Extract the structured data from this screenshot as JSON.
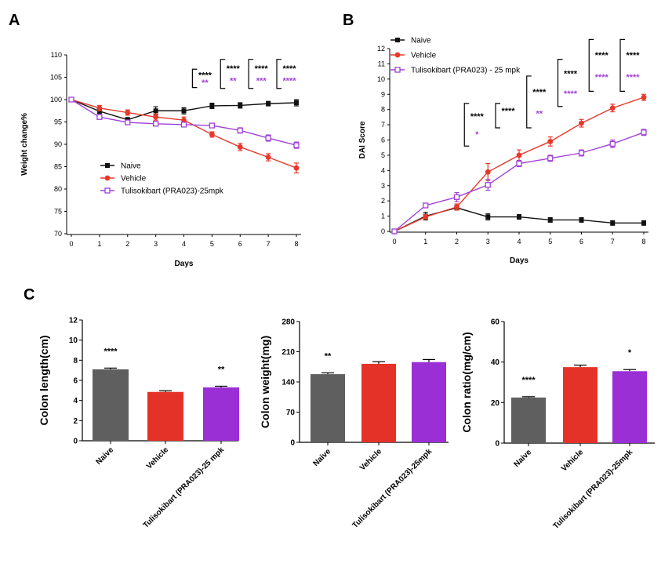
{
  "panels": {
    "a": "A",
    "b": "B",
    "c": "C"
  },
  "colors": {
    "naive": "#111111",
    "vehicle": "#e8382a",
    "tulisokibart": "#a040d8",
    "bar_naive": "#5f5f5f",
    "bar_vehicle": "#e53228",
    "bar_tulisokibart": "#9b2fd6"
  },
  "chart_data": [
    {
      "id": "A",
      "type": "line",
      "xlabel": "Days",
      "ylabel": "Weight change%",
      "ylim": [
        70,
        110
      ],
      "yticks": [
        70,
        75,
        80,
        85,
        90,
        95,
        100,
        105,
        110
      ],
      "x": [
        0,
        1,
        2,
        3,
        4,
        5,
        6,
        7,
        8
      ],
      "legend_position": "bottom-left",
      "series": [
        {
          "name": "Naive",
          "key": "naive",
          "marker": "square",
          "values": [
            100,
            97.4,
            95.5,
            97.5,
            97.5,
            98.6,
            98.7,
            99.1,
            99.3
          ],
          "errors": [
            0.2,
            0.5,
            0.5,
            0.9,
            0.7,
            0.6,
            0.6,
            0.5,
            0.7
          ]
        },
        {
          "name": "Vehicle",
          "key": "vehicle",
          "marker": "circle",
          "values": [
            100,
            98.1,
            97.1,
            96.1,
            95.4,
            92.2,
            89.4,
            87.1,
            84.7
          ],
          "errors": [
            0.2,
            0.6,
            0.6,
            0.7,
            0.7,
            0.6,
            0.8,
            0.8,
            1.1
          ]
        },
        {
          "name": "Tulisokibart (PRA023)-25mpk",
          "key": "tulisokibart",
          "marker": "open-square",
          "values": [
            100,
            96.1,
            94.9,
            94.6,
            94.4,
            94.2,
            93.1,
            91.4,
            89.8
          ],
          "errors": [
            0.2,
            0.4,
            0.4,
            0.4,
            0.4,
            0.4,
            0.6,
            0.7,
            0.7
          ]
        }
      ],
      "annotations": [
        {
          "x": 5,
          "top": "****",
          "bottom": "**",
          "bracket": "open",
          "y_top": 106.8,
          "y_bot": 102.7
        },
        {
          "x": 6,
          "top": "****",
          "bottom": "**",
          "bracket": "wide",
          "y_top": 109.0,
          "y_bot": 102.5
        },
        {
          "x": 7,
          "top": "****",
          "bottom": "***",
          "bracket": "wide",
          "y_top": 109.0,
          "y_bot": 102.5
        },
        {
          "x": 8,
          "top": "****",
          "bottom": "****",
          "bracket": "wide",
          "y_top": 109.0,
          "y_bot": 102.5
        }
      ]
    },
    {
      "id": "B",
      "type": "line",
      "xlabel": "Days",
      "ylabel": "DAI Score",
      "ylim": [
        0,
        12
      ],
      "yticks": [
        0,
        1,
        2,
        3,
        4,
        5,
        6,
        7,
        8,
        9,
        10,
        11,
        12
      ],
      "x": [
        0,
        1,
        2,
        3,
        4,
        5,
        6,
        7,
        8
      ],
      "legend_position": "top-left",
      "series": [
        {
          "name": "Naive",
          "key": "naive",
          "marker": "square",
          "values": [
            0,
            1.0,
            1.55,
            0.95,
            0.95,
            0.75,
            0.75,
            0.55,
            0.55
          ],
          "errors": [
            0,
            0.25,
            0.15,
            0.2,
            0.15,
            0.15,
            0.15,
            0.15,
            0.15
          ]
        },
        {
          "name": "Vehicle",
          "key": "vehicle",
          "marker": "circle",
          "values": [
            0,
            0.95,
            1.6,
            3.9,
            5.0,
            5.9,
            7.1,
            8.1,
            8.8
          ],
          "errors": [
            0,
            0.15,
            0.2,
            0.55,
            0.35,
            0.3,
            0.25,
            0.25,
            0.2
          ]
        },
        {
          "name": "Tulisokibart (PRA023) - 25 mpk",
          "key": "tulisokibart",
          "marker": "open-square",
          "values": [
            0,
            1.7,
            2.25,
            3.05,
            4.45,
            4.8,
            5.15,
            5.75,
            6.5
          ],
          "errors": [
            0,
            0.15,
            0.3,
            0.35,
            0.2,
            0.2,
            0.2,
            0.25,
            0.2
          ]
        }
      ],
      "annotations": [
        {
          "x": 3,
          "top": "****",
          "bottom": "*",
          "y_top": 8.4,
          "y_bot": 5.6
        },
        {
          "x": 4,
          "top": "****",
          "bottom": "",
          "y_top": 8.4,
          "y_bot": 6.8
        },
        {
          "x": 5,
          "top": "****",
          "bottom": "**",
          "y_top": 10.2,
          "y_bot": 6.8
        },
        {
          "x": 6,
          "top": "****",
          "bottom": "****",
          "y_top": 11.3,
          "y_bot": 8.2
        },
        {
          "x": 7,
          "top": "****",
          "bottom": "****",
          "y_top": 12.6,
          "y_bot": 9.2
        },
        {
          "x": 8,
          "top": "****",
          "bottom": "****",
          "y_top": 12.6,
          "y_bot": 9.2
        }
      ]
    },
    {
      "id": "C1",
      "type": "bar",
      "ylabel": "Colon length(cm)",
      "ylim": [
        0,
        12
      ],
      "yticks": [
        0,
        2,
        4,
        6,
        8,
        10,
        12
      ],
      "categories": [
        "Naive",
        "Vehicle",
        "Tulisokibart (PRA023)-25 mpk"
      ],
      "keys": [
        "bar_naive",
        "bar_vehicle",
        "bar_tulisokibart"
      ],
      "values": [
        7.1,
        4.85,
        5.3
      ],
      "errors": [
        0.12,
        0.12,
        0.12
      ],
      "stars": [
        "****",
        "",
        "**"
      ]
    },
    {
      "id": "C2",
      "type": "bar",
      "ylabel": "Colon weight(mg)",
      "ylim": [
        0,
        280
      ],
      "yticks": [
        0,
        70,
        140,
        210,
        280
      ],
      "categories": [
        "Naive",
        "Vehicle",
        "Tulisokibart (PRA023)-25mpk"
      ],
      "keys": [
        "bar_naive",
        "bar_vehicle",
        "bar_tulisokibart"
      ],
      "values": [
        158,
        182,
        186
      ],
      "errors": [
        3,
        5,
        6
      ],
      "stars": [
        "**",
        "",
        ""
      ]
    },
    {
      "id": "C3",
      "type": "bar",
      "ylabel": "Colon ratio(mg/cm)",
      "ylim": [
        0,
        60
      ],
      "yticks": [
        0,
        20,
        40,
        60
      ],
      "categories": [
        "Naive",
        "Vehicle",
        "Tulisokibart (PRA023)-25mpk"
      ],
      "keys": [
        "bar_naive",
        "bar_vehicle",
        "bar_tulisokibart"
      ],
      "values": [
        22.5,
        37.5,
        35.5
      ],
      "errors": [
        0.4,
        1.0,
        0.8
      ],
      "stars": [
        "****",
        "",
        "*"
      ]
    }
  ]
}
